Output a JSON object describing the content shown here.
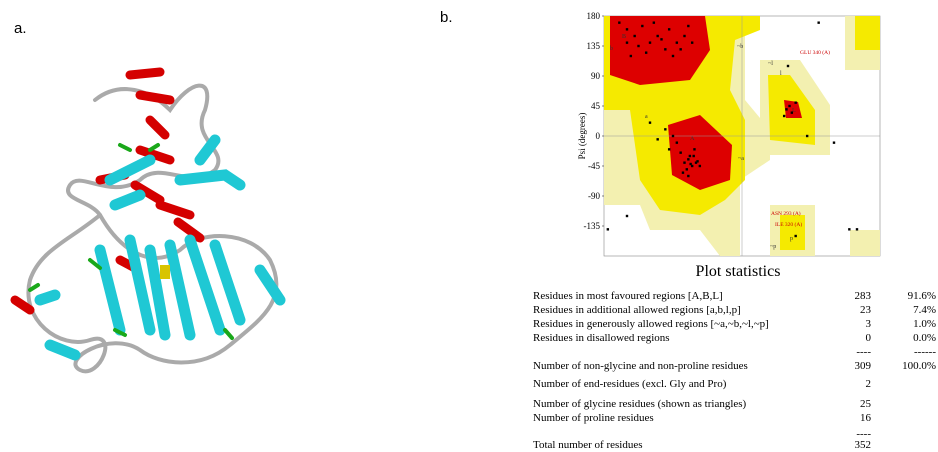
{
  "panel_labels": [
    "a.",
    "b."
  ],
  "ramachandran": {
    "ylabel": "Psi (degrees)",
    "ylim": [
      -180,
      180
    ],
    "xlim": [
      -180,
      180
    ],
    "yticks": [
      180,
      135,
      90,
      45,
      0,
      -45,
      -90,
      -135
    ],
    "region_labels": [
      "B",
      "b",
      "A",
      "a",
      "L",
      "l",
      "p",
      "~b",
      "~a",
      "~l",
      "~p"
    ],
    "annotations": [
      "GLU 340 (A)",
      "ASN 293 (A)",
      "ILE 320 (A)"
    ],
    "points": [
      [
        -150,
        160
      ],
      [
        -140,
        150
      ],
      [
        -130,
        165
      ],
      [
        -120,
        140
      ],
      [
        -110,
        150
      ],
      [
        -100,
        130
      ],
      [
        -95,
        160
      ],
      [
        -85,
        140
      ],
      [
        -75,
        150
      ],
      [
        -70,
        165
      ],
      [
        -160,
        170
      ],
      [
        -125,
        125
      ],
      [
        -135,
        135
      ],
      [
        -115,
        170
      ],
      [
        -145,
        120
      ],
      [
        -90,
        120
      ],
      [
        -105,
        145
      ],
      [
        -80,
        130
      ],
      [
        -65,
        140
      ],
      [
        -150,
        140
      ],
      [
        -75,
        -40
      ],
      [
        -70,
        -35
      ],
      [
        -65,
        -45
      ],
      [
        -60,
        -40
      ],
      [
        -68,
        -30
      ],
      [
        -72,
        -50
      ],
      [
        -80,
        -25
      ],
      [
        -62,
        -20
      ],
      [
        -58,
        -38
      ],
      [
        -85,
        -10
      ],
      [
        -90,
        0
      ],
      [
        -95,
        -20
      ],
      [
        -55,
        -45
      ],
      [
        -67,
        -42
      ],
      [
        -77,
        -55
      ],
      [
        -100,
        10
      ],
      [
        -110,
        -5
      ],
      [
        -63,
        -30
      ],
      [
        -70,
        -60
      ],
      [
        -120,
        20
      ],
      [
        58,
        40
      ],
      [
        62,
        45
      ],
      [
        65,
        35
      ],
      [
        70,
        50
      ],
      [
        55,
        30
      ],
      [
        85,
        0
      ],
      [
        60,
        105
      ],
      [
        120,
        -10
      ],
      [
        100,
        170
      ],
      [
        70,
        -150
      ],
      [
        140,
        -140
      ],
      [
        150,
        -140
      ],
      [
        -150,
        -120
      ],
      [
        -175,
        -140
      ]
    ]
  },
  "statistics": {
    "title": "Plot statistics",
    "rows": [
      [
        "Residues in most favoured regions  [A,B,L]",
        "283",
        "91.6%"
      ],
      [
        "Residues in additional allowed regions  [a,b,l,p]",
        "23",
        "7.4%"
      ],
      [
        "Residues in generously allowed regions  [~a,~b,~l,~p]",
        "3",
        "1.0%"
      ],
      [
        "Residues in disallowed regions",
        "0",
        "0.0%"
      ],
      [
        "",
        "----",
        "------"
      ],
      [
        "Number of non-glycine and non-proline residues",
        "309",
        "100.0%"
      ],
      [
        "Number of end-residues (excl. Gly and Pro)",
        "2",
        ""
      ],
      [
        "Number of glycine residues (shown as triangles)",
        "25",
        ""
      ],
      [
        "Number of proline residues",
        "16",
        ""
      ],
      [
        "",
        "----",
        ""
      ],
      [
        "Total number of residues",
        "352",
        ""
      ]
    ]
  }
}
